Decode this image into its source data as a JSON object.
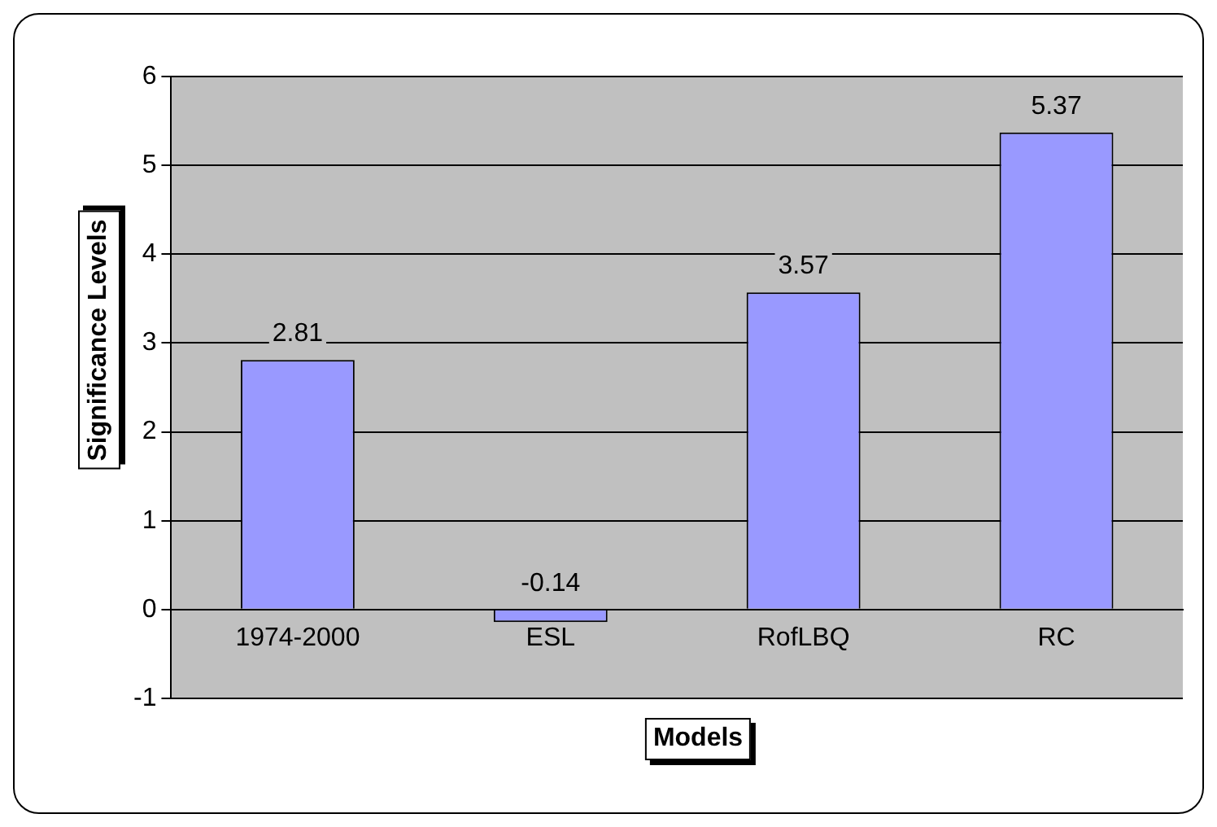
{
  "chart_data": {
    "type": "bar",
    "xlabel": "Models",
    "ylabel": "Significance Levels",
    "categories": [
      "1974-2000",
      "ESL",
      "RofLBQ",
      "RC"
    ],
    "values": [
      2.81,
      -0.14,
      3.57,
      5.37
    ],
    "color": "#9999ff",
    "ylim": [
      -1,
      6
    ],
    "yticks": [
      -1,
      0,
      1,
      2,
      3,
      4,
      5,
      6
    ],
    "grid": "y",
    "legend": false,
    "data_labels": true
  }
}
